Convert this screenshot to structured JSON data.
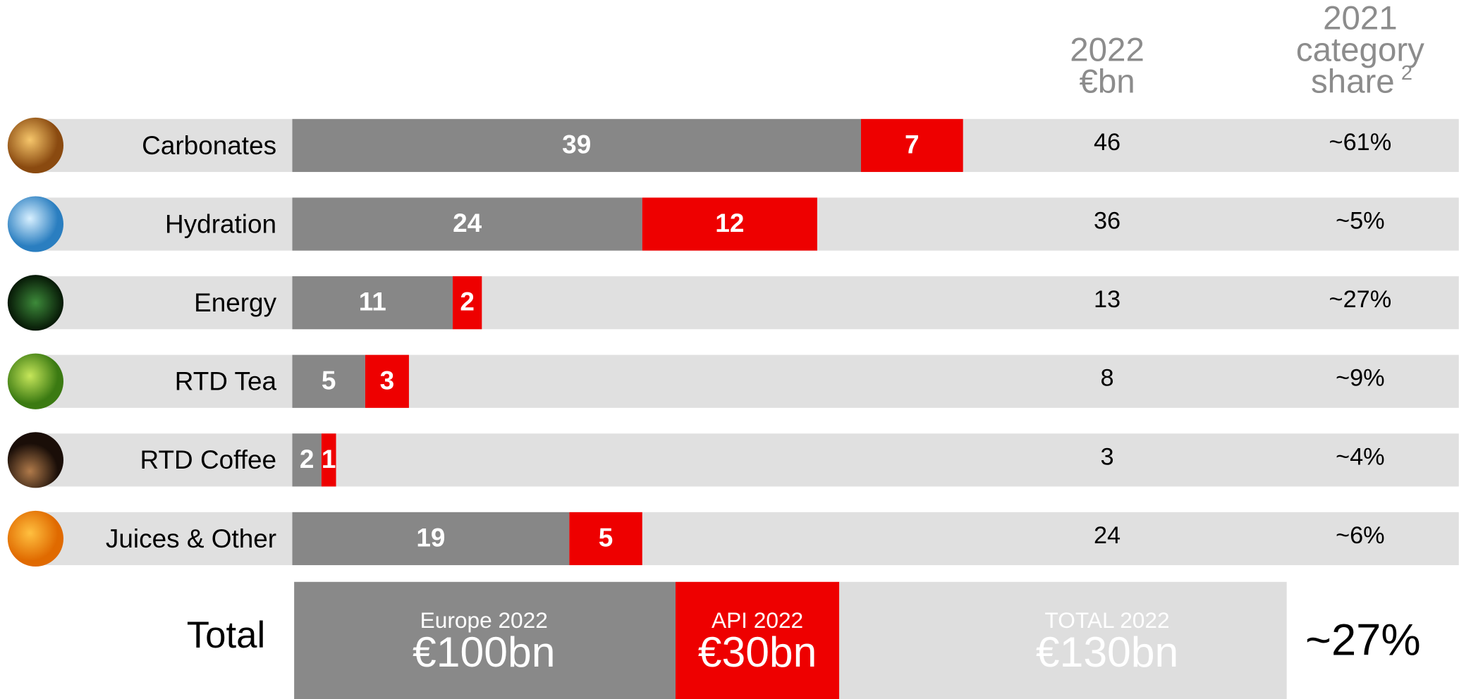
{
  "chart_data": {
    "type": "bar",
    "orientation": "horizontal",
    "stacked": true,
    "categories": [
      "Carbonates",
      "Hydration",
      "Energy",
      "RTD Tea",
      "RTD Coffee",
      "Juices & Other"
    ],
    "series": [
      {
        "name": "Europe 2022",
        "color": "#878787",
        "values": [
          39,
          24,
          11,
          5,
          2,
          19
        ]
      },
      {
        "name": "API 2022",
        "color": "#ee0000",
        "values": [
          7,
          12,
          2,
          3,
          1,
          5
        ]
      }
    ],
    "xlim": [
      0,
      80
    ],
    "column_headers": [
      {
        "lines": [
          "2022",
          "€bn"
        ]
      },
      {
        "lines": [
          "2021",
          "category",
          "share"
        ],
        "superscript": "2"
      }
    ],
    "totals": [
      46,
      36,
      13,
      8,
      3,
      24
    ],
    "share_labels": [
      "~61%",
      "~5%",
      "~27%",
      "~9%",
      "~4%",
      "~6%"
    ],
    "total_row": {
      "label": "Total",
      "europe_value": "€100bn",
      "api_value": "€30bn",
      "total_name": "TOTAL 2022",
      "total_value": "€130bn",
      "share": "~27%"
    }
  }
}
